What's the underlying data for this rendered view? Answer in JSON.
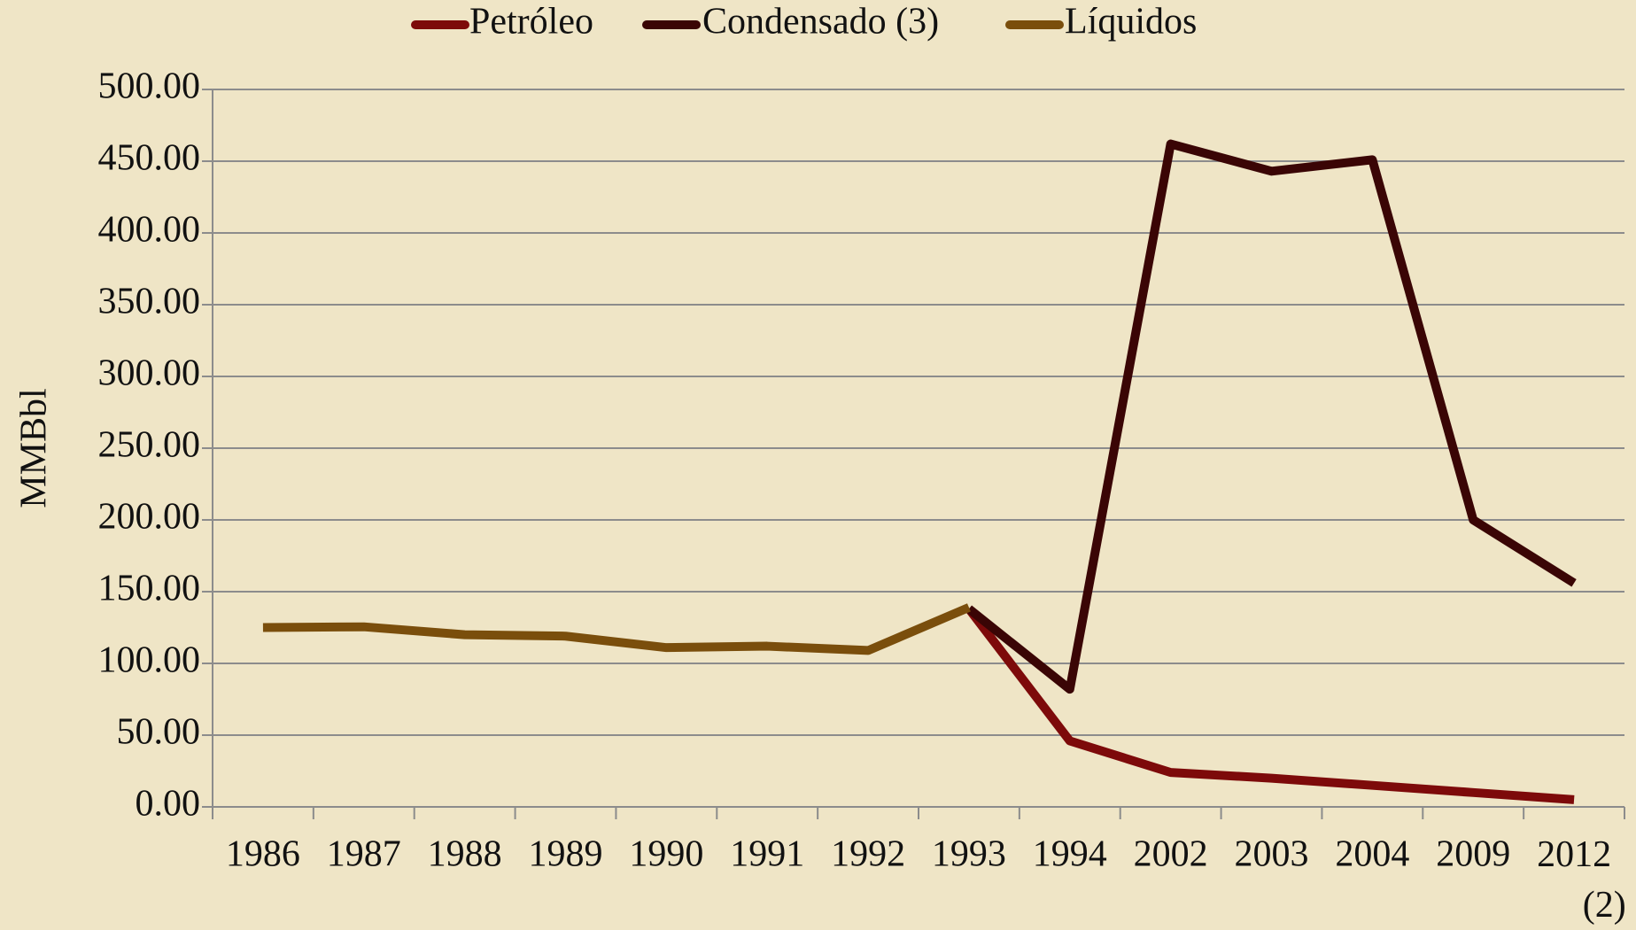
{
  "chart_data": {
    "type": "line",
    "y_label": "MMBbl",
    "categories": [
      "1986",
      "1987",
      "1988",
      "1989",
      "1990",
      "1991",
      "1992",
      "1993",
      "1994",
      "2002",
      "2003",
      "2004",
      "2009",
      "2012 (2)"
    ],
    "series": [
      {
        "name": "Petróleo",
        "color": "#7d0a0a",
        "values": [
          null,
          null,
          null,
          null,
          null,
          null,
          null,
          138,
          46,
          24,
          20,
          15,
          10,
          5
        ]
      },
      {
        "name": "Condensado (3)",
        "color": "#3a0505",
        "values": [
          null,
          null,
          null,
          null,
          null,
          null,
          null,
          138,
          82,
          462,
          443,
          451,
          200,
          156
        ]
      },
      {
        "name": "Líquidos",
        "color": "#7a4e0c",
        "values": [
          125,
          125.5,
          120,
          119,
          111,
          112,
          109,
          139,
          null,
          null,
          null,
          null,
          null,
          null
        ]
      }
    ],
    "ylim": [
      0,
      500
    ],
    "yticks": [
      {
        "value": 0,
        "label": "0.00"
      },
      {
        "value": 50,
        "label": "50.00"
      },
      {
        "value": 100,
        "label": "100.00"
      },
      {
        "value": 150,
        "label": "150.00"
      },
      {
        "value": 200,
        "label": "200.00"
      },
      {
        "value": 250,
        "label": "250.00"
      },
      {
        "value": 300,
        "label": "300.00"
      },
      {
        "value": 350,
        "label": "350.00"
      },
      {
        "value": 400,
        "label": "400.00"
      },
      {
        "value": 450,
        "label": "450.00"
      },
      {
        "value": 500,
        "label": "500.00"
      }
    ],
    "grid": true,
    "legend": "top"
  }
}
